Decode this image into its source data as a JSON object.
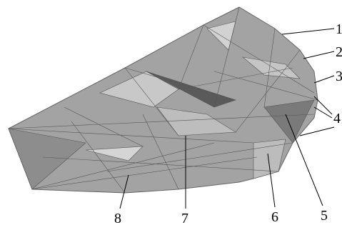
{
  "labels": [
    "1",
    "2",
    "3",
    "4",
    "5",
    "6",
    "7",
    "8"
  ]
}
